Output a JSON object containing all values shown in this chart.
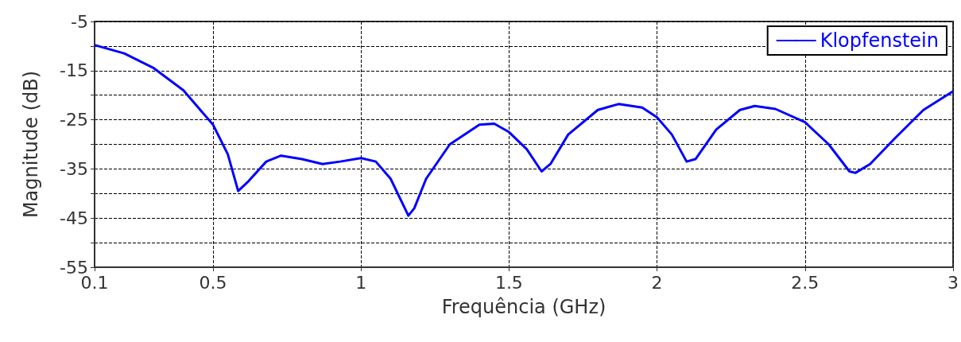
{
  "chart_data": {
    "type": "line",
    "xlabel": "Frequência (GHz)",
    "ylabel": "Magnitude (dB)",
    "xlim": [
      0.1,
      3
    ],
    "xticks": [
      0.1,
      0.5,
      1,
      1.5,
      2,
      2.5,
      3
    ],
    "ylim": [
      -55,
      -5
    ],
    "yticks": [
      -55,
      {
        "value": -50,
        "label": null
      },
      -45,
      {
        "value": -40,
        "label": null
      },
      -35,
      {
        "value": -30,
        "label": null
      },
      -25,
      {
        "value": -20,
        "label": null
      },
      -15,
      {
        "value": -10,
        "label": null
      },
      -5
    ],
    "grid": true,
    "legend": "top right",
    "marker": "none",
    "line_style": "solid",
    "series": [
      {
        "name": "Klopfenstein",
        "color": "#0000ff",
        "x": [
          0.1,
          0.2,
          0.3,
          0.4,
          0.5,
          0.55,
          0.585,
          0.62,
          0.68,
          0.73,
          0.8,
          0.87,
          0.93,
          1.0,
          1.05,
          1.1,
          1.14,
          1.16,
          1.18,
          1.22,
          1.3,
          1.4,
          1.45,
          1.5,
          1.56,
          1.61,
          1.64,
          1.7,
          1.8,
          1.87,
          1.95,
          2.0,
          2.05,
          2.1,
          2.13,
          2.2,
          2.28,
          2.33,
          2.4,
          2.5,
          2.58,
          2.65,
          2.67,
          2.72,
          2.8,
          2.9,
          3.0
        ],
        "values": [
          -9.8,
          -11.5,
          -14.5,
          -19,
          -26,
          -32,
          -39.5,
          -37.5,
          -33.5,
          -32.3,
          -33,
          -34,
          -33.5,
          -32.8,
          -33.5,
          -37,
          -42,
          -44.5,
          -43,
          -37,
          -30,
          -26,
          -25.8,
          -27.5,
          -31,
          -35.5,
          -34,
          -28,
          -23,
          -21.8,
          -22.5,
          -24.5,
          -28,
          -33.5,
          -33,
          -27,
          -23,
          -22.2,
          -22.8,
          -25.5,
          -30,
          -35.5,
          -35.8,
          -34,
          -29,
          -23,
          -19.2
        ]
      }
    ]
  }
}
